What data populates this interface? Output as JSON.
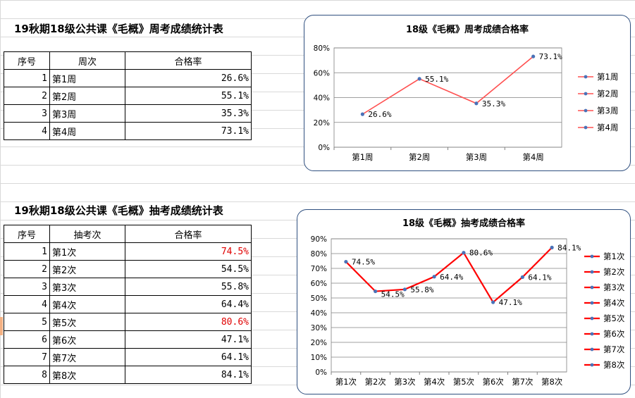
{
  "table1": {
    "title": "19秋期18级公共课《毛概》周考成绩统计表",
    "headers": [
      "序号",
      "周次",
      "合格率"
    ],
    "rows": [
      {
        "idx": "1",
        "name": "第1周",
        "rate": "26.6%"
      },
      {
        "idx": "2",
        "name": "第2周",
        "rate": "55.1%"
      },
      {
        "idx": "3",
        "name": "第3周",
        "rate": "35.3%"
      },
      {
        "idx": "4",
        "name": "第4周",
        "rate": "73.1%"
      }
    ]
  },
  "table2": {
    "title": "19秋期18级公共课《毛概》抽考成绩统计表",
    "headers": [
      "序号",
      "抽考次",
      "合格率"
    ],
    "rows": [
      {
        "idx": "1",
        "name": "第1次",
        "rate": "74.5%",
        "highlight": true
      },
      {
        "idx": "2",
        "name": "第2次",
        "rate": "54.5%",
        "highlight": false
      },
      {
        "idx": "3",
        "name": "第3次",
        "rate": "55.8%",
        "highlight": false
      },
      {
        "idx": "4",
        "name": "第4次",
        "rate": "64.4%",
        "highlight": false
      },
      {
        "idx": "5",
        "name": "第5次",
        "rate": "80.6%",
        "highlight": true
      },
      {
        "idx": "6",
        "name": "第6次",
        "rate": "47.1%",
        "highlight": false
      },
      {
        "idx": "7",
        "name": "第7次",
        "rate": "64.1%",
        "highlight": false
      },
      {
        "idx": "8",
        "name": "第8次",
        "rate": "84.1%",
        "highlight": false
      }
    ]
  },
  "colors": {
    "line": "#ff0000",
    "line_weekly": "#ff5050",
    "marker": "#4a72b8",
    "highlight_text": "#e00000",
    "frame": "#2f4f7f",
    "grid": "#808080"
  },
  "chart_data": [
    {
      "type": "line",
      "title": "18级《毛概》周考成绩合格率",
      "categories": [
        "第1周",
        "第2周",
        "第3周",
        "第4周"
      ],
      "values": [
        26.6,
        55.1,
        35.3,
        73.1
      ],
      "data_labels": [
        "26.6%",
        "55.1%",
        "35.3%",
        "73.1%"
      ],
      "ylim": [
        0,
        80
      ],
      "yticks": [
        "0%",
        "20%",
        "40%",
        "60%",
        "80%"
      ],
      "legend": [
        "第1周",
        "第2周",
        "第3周",
        "第4周"
      ],
      "legend_position": "right",
      "grid": true
    },
    {
      "type": "line",
      "title": "18级《毛概》抽考成绩合格率",
      "categories": [
        "第1次",
        "第2次",
        "第3次",
        "第4次",
        "第5次",
        "第6次",
        "第7次",
        "第8次"
      ],
      "values": [
        74.5,
        54.5,
        55.8,
        64.4,
        80.6,
        47.1,
        64.1,
        84.1
      ],
      "data_labels": [
        "74.5%",
        "54.5%",
        "55.8%",
        "64.4%",
        "80.6%",
        "47.1%",
        "64.1%",
        "84.1%"
      ],
      "ylim": [
        0,
        90
      ],
      "yticks": [
        "0%",
        "10%",
        "20%",
        "30%",
        "40%",
        "50%",
        "60%",
        "70%",
        "80%",
        "90%"
      ],
      "legend": [
        "第1次",
        "第2次",
        "第3次",
        "第4次",
        "第5次",
        "第6次",
        "第7次",
        "第8次"
      ],
      "legend_position": "right",
      "grid": true
    }
  ]
}
